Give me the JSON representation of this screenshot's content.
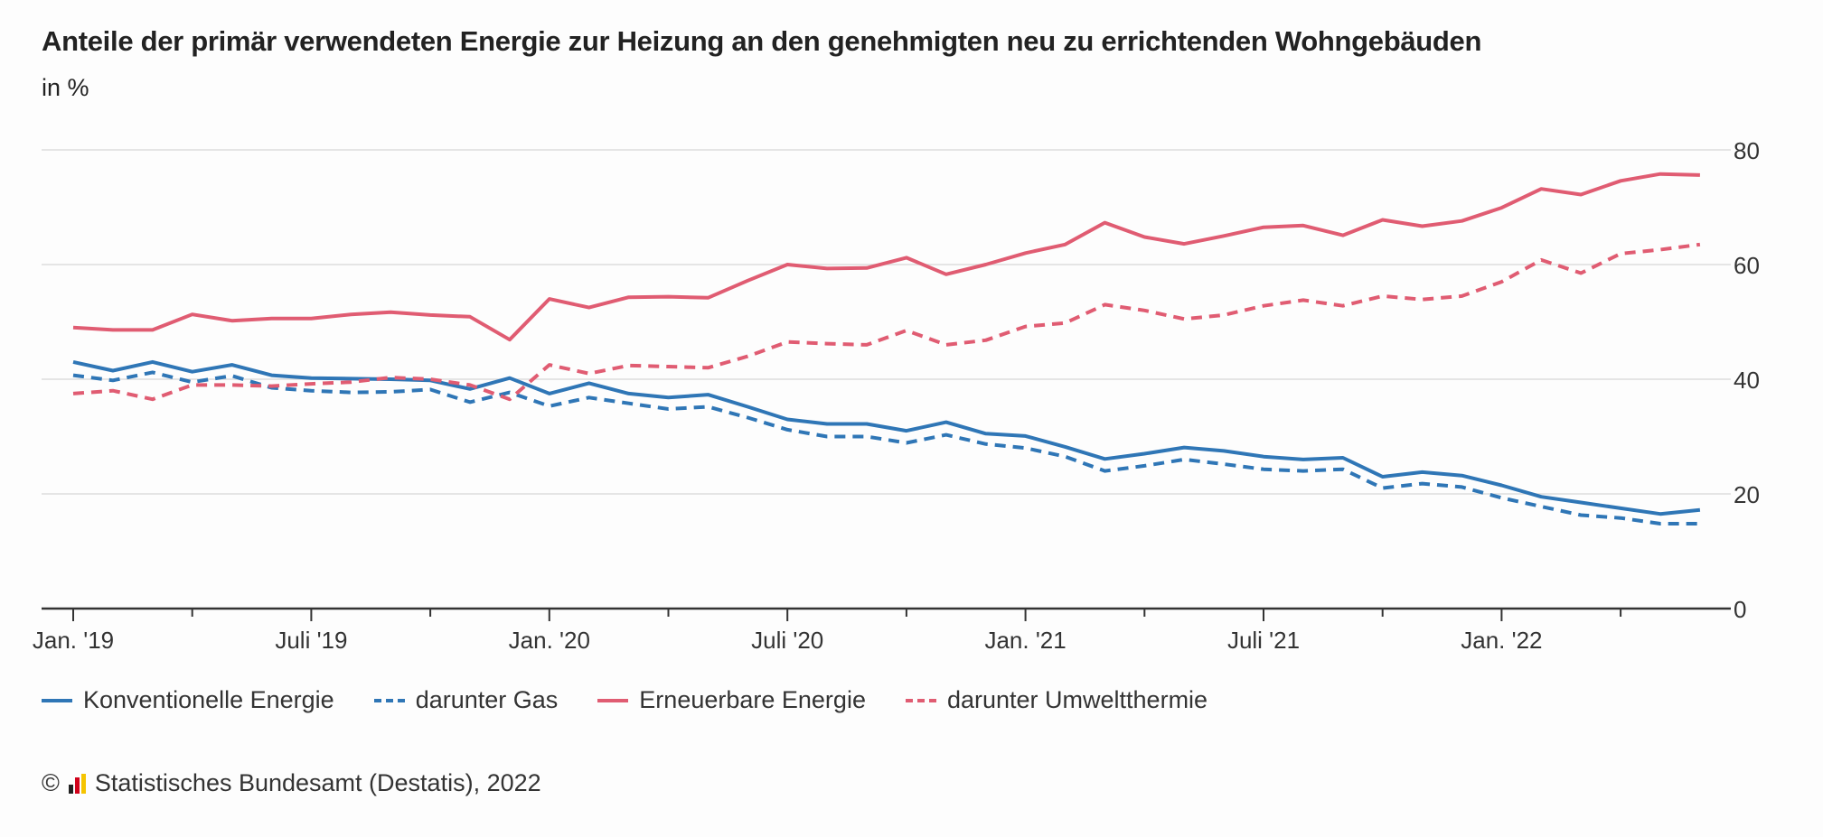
{
  "title": "Anteile der primär verwendeten Energie zur Heizung an den genehmigten neu zu errichtenden Wohngebäuden",
  "subtitle": "in %",
  "footer": {
    "copyright": "©",
    "source": "Statistisches Bundesamt (Destatis), 2022",
    "logo_colors": [
      "#222222",
      "#d0021b",
      "#f5c400"
    ]
  },
  "chart_data": {
    "type": "line",
    "x_label_positions": [
      0,
      6,
      12,
      18,
      24,
      30,
      36
    ],
    "x_tick_labels": [
      "Jan. '19",
      "Juli '19",
      "Jan. '20",
      "Juli '20",
      "Jan. '21",
      "Juli '21",
      "Jan. '22"
    ],
    "ylim": [
      0,
      80
    ],
    "yticks": [
      0,
      20,
      40,
      60,
      80
    ],
    "grid": true,
    "y_axis_position": "right",
    "legend_position": "bottom",
    "series": [
      {
        "name": "Konventionelle Energie",
        "color": "#2f76b6",
        "dashed": false,
        "values": [
          43.0,
          41.5,
          43.0,
          41.3,
          42.5,
          40.7,
          40.2,
          40.1,
          40.0,
          39.8,
          38.3,
          40.2,
          37.5,
          39.3,
          37.5,
          36.8,
          37.3,
          35.2,
          33.0,
          32.2,
          32.2,
          31.0,
          32.5,
          30.5,
          30.1,
          28.2,
          26.1,
          27.0,
          28.1,
          27.5,
          26.5,
          26.0,
          26.3,
          23.0,
          23.8,
          23.2,
          21.5,
          19.5,
          18.5,
          17.5,
          16.5,
          17.2
        ]
      },
      {
        "name": "darunter Gas",
        "color": "#2f76b6",
        "dashed": true,
        "values": [
          40.7,
          39.8,
          41.2,
          39.5,
          40.6,
          38.5,
          38.0,
          37.7,
          37.8,
          38.2,
          36.0,
          37.7,
          35.3,
          36.8,
          35.8,
          34.8,
          35.2,
          33.3,
          31.2,
          30.0,
          30.0,
          28.9,
          30.3,
          28.7,
          28.0,
          26.5,
          24.0,
          24.9,
          26.0,
          25.2,
          24.3,
          24.0,
          24.3,
          21.0,
          21.8,
          21.2,
          19.3,
          17.8,
          16.3,
          15.8,
          14.8,
          14.8
        ]
      },
      {
        "name": "Erneuerbare Energie",
        "color": "#e05c72",
        "dashed": false,
        "values": [
          49.0,
          48.6,
          48.6,
          51.3,
          50.2,
          50.6,
          50.6,
          51.3,
          51.7,
          51.2,
          50.9,
          46.9,
          54.0,
          52.5,
          54.3,
          54.4,
          54.2,
          57.2,
          60.0,
          59.3,
          59.4,
          61.2,
          58.3,
          60.0,
          62.0,
          63.5,
          67.3,
          64.8,
          63.6,
          65.0,
          66.5,
          66.8,
          65.1,
          67.8,
          66.7,
          67.6,
          69.9,
          73.2,
          72.2,
          74.6,
          75.8,
          75.6
        ]
      },
      {
        "name": "darunter Umweltthermie",
        "color": "#e05c72",
        "dashed": true,
        "values": [
          37.5,
          38.0,
          36.5,
          39.0,
          39.0,
          38.8,
          39.2,
          39.5,
          40.3,
          40.0,
          39.0,
          36.5,
          42.5,
          41.0,
          42.4,
          42.2,
          42.0,
          44.0,
          46.5,
          46.2,
          46.0,
          48.5,
          46.0,
          46.8,
          49.2,
          49.8,
          53.0,
          52.0,
          50.5,
          51.2,
          52.8,
          53.8,
          52.8,
          54.5,
          53.9,
          54.5,
          57.0,
          60.8,
          58.5,
          61.9,
          62.6,
          63.5
        ]
      }
    ]
  }
}
